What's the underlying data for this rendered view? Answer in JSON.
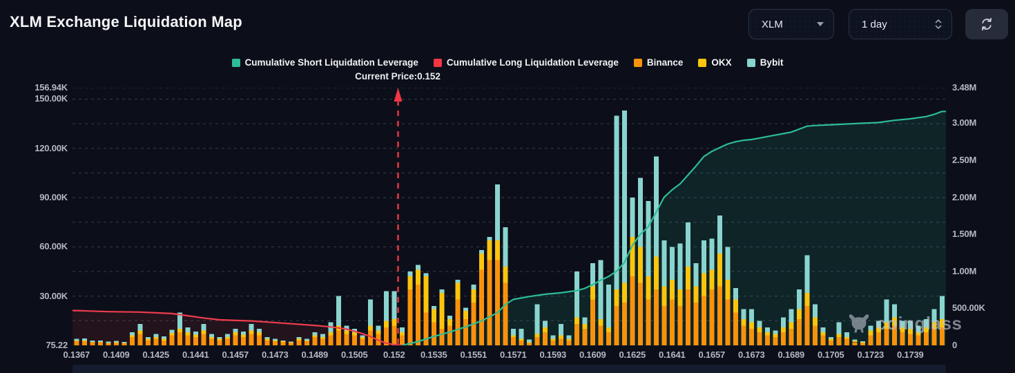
{
  "header": {
    "title": "XLM Exchange Liquidation Map"
  },
  "controls": {
    "symbol": "XLM",
    "interval": "1 day",
    "refresh_icon": "refresh-circular-arrows"
  },
  "legend": [
    {
      "label": "Cumulative Short Liquidation Leverage",
      "color": "#2dbd96"
    },
    {
      "label": "Cumulative Long Liquidation Leverage",
      "color": "#f23645"
    },
    {
      "label": "Binance",
      "color": "#f9920b"
    },
    {
      "label": "OKX",
      "color": "#fbc50d"
    },
    {
      "label": "Bybit",
      "color": "#8ad4cf"
    }
  ],
  "annotation": {
    "current_price_label": "Current Price:0.152"
  },
  "watermark": {
    "text": "coinglass"
  },
  "colors": {
    "background": "#0c0f19",
    "grid": "#3c4352",
    "axis_text": "#b3b8c2",
    "short_line": "#2dbd96",
    "long_line": "#ef3d4e",
    "binance": "#f9920b",
    "okx": "#fbc50d",
    "bybit": "#8ad4cf",
    "short_fill": "rgba(45,189,150,0.12)",
    "long_fill": "rgba(242,54,69,0.10)",
    "price_marker": "#f23645"
  },
  "chart_data": {
    "type": "bar",
    "subtype": "stacked-bars-with-cumulative-lines",
    "title": "XLM Exchange Liquidation Map",
    "xlabel": "price",
    "grid": "dashed-horizontal",
    "legend_position": "top-center",
    "current_price": {
      "value": 0.152,
      "bar_index": 41
    },
    "x_labels": [
      "0.1367",
      "0.1409",
      "0.1425",
      "0.1441",
      "0.1457",
      "0.1473",
      "0.1489",
      "0.1505",
      "0.152",
      "0.1535",
      "0.1551",
      "0.1571",
      "0.1593",
      "0.1609",
      "0.1625",
      "0.1641",
      "0.1657",
      "0.1673",
      "0.1689",
      "0.1705",
      "0.1723",
      "0.1739"
    ],
    "label_every": 5,
    "left_axis": {
      "unit": "K",
      "max": 156.94,
      "labels": [
        [
          "156.94K",
          156.94
        ],
        [
          "150.00K",
          150
        ],
        [
          "120.00K",
          120
        ],
        [
          "90.00K",
          90
        ],
        [
          "60.00K",
          60
        ],
        [
          "30.00K",
          30
        ],
        [
          "75.22",
          0
        ]
      ]
    },
    "right_axis": {
      "unit": "M",
      "max": 3.48,
      "labels": [
        [
          "3.48M",
          3.48
        ],
        [
          "3.00M",
          3.0
        ],
        [
          "2.50M",
          2.5
        ],
        [
          "2.00M",
          2.0
        ],
        [
          "1.50M",
          1.5
        ],
        [
          "1.00M",
          1.0
        ],
        [
          "500.00K",
          0.5
        ],
        [
          "0",
          0
        ]
      ]
    },
    "bar_series_order": [
      "Binance",
      "OKX",
      "Bybit"
    ],
    "bars_unit": "K",
    "bars": [
      [
        2.5,
        0.5,
        1
      ],
      [
        2.5,
        0.5,
        1.2
      ],
      [
        1.8,
        0.4,
        0.8
      ],
      [
        1.8,
        0.4,
        0.8
      ],
      [
        1.2,
        0.3,
        0.9
      ],
      [
        1.5,
        0.4,
        0.9
      ],
      [
        1.2,
        0.3,
        0.6
      ],
      [
        5,
        1,
        2
      ],
      [
        7,
        2,
        4
      ],
      [
        3,
        1,
        1
      ],
      [
        4,
        1,
        2
      ],
      [
        3,
        1,
        1.5
      ],
      [
        6,
        1.5,
        2
      ],
      [
        8,
        2,
        10
      ],
      [
        6,
        2,
        3
      ],
      [
        5,
        1.5,
        2
      ],
      [
        7,
        2,
        4
      ],
      [
        4,
        1,
        2
      ],
      [
        3,
        1,
        1
      ],
      [
        4,
        1,
        2
      ],
      [
        6,
        2,
        2
      ],
      [
        5,
        1.5,
        2
      ],
      [
        7,
        2,
        4
      ],
      [
        6,
        2,
        2
      ],
      [
        3,
        1,
        1
      ],
      [
        2.5,
        0.5,
        1
      ],
      [
        2,
        0.5,
        0.5
      ],
      [
        1.5,
        0.3,
        0.5
      ],
      [
        3,
        1,
        1
      ],
      [
        2.5,
        0.5,
        1
      ],
      [
        5,
        1,
        2
      ],
      [
        4,
        1,
        2
      ],
      [
        6,
        2,
        6
      ],
      [
        9,
        3,
        18
      ],
      [
        7,
        2,
        3
      ],
      [
        6,
        2,
        2
      ],
      [
        4,
        1,
        1
      ],
      [
        9,
        3,
        16
      ],
      [
        7,
        2,
        3
      ],
      [
        11,
        4,
        18
      ],
      [
        12,
        4,
        17
      ],
      [
        6,
        2,
        3
      ],
      [
        34,
        8,
        3
      ],
      [
        37,
        9,
        3
      ],
      [
        20,
        22,
        2
      ],
      [
        14,
        8,
        2
      ],
      [
        10,
        22,
        2
      ],
      [
        12,
        4,
        2
      ],
      [
        28,
        10,
        2
      ],
      [
        16,
        5,
        2
      ],
      [
        26,
        8,
        3
      ],
      [
        46,
        10,
        2
      ],
      [
        52,
        12,
        2
      ],
      [
        52,
        12,
        34
      ],
      [
        38,
        10,
        24
      ],
      [
        5,
        1,
        4
      ],
      [
        3,
        1,
        6
      ],
      [
        1.5,
        0.5,
        1.5
      ],
      [
        5,
        2,
        18
      ],
      [
        8,
        3,
        4
      ],
      [
        3,
        1,
        2
      ],
      [
        4,
        2,
        7
      ],
      [
        3,
        1,
        2
      ],
      [
        13,
        4,
        28
      ],
      [
        10,
        3,
        4
      ],
      [
        28,
        8,
        14
      ],
      [
        12,
        4,
        36
      ],
      [
        8,
        3,
        26
      ],
      [
        24,
        10,
        106
      ],
      [
        26,
        12,
        105
      ],
      [
        42,
        24,
        24
      ],
      [
        38,
        22,
        42
      ],
      [
        28,
        14,
        46
      ],
      [
        34,
        20,
        61
      ],
      [
        24,
        12,
        28
      ],
      [
        28,
        12,
        20
      ],
      [
        24,
        10,
        28
      ],
      [
        34,
        14,
        27
      ],
      [
        26,
        10,
        14
      ],
      [
        30,
        14,
        20
      ],
      [
        34,
        12,
        19
      ],
      [
        36,
        20,
        23
      ],
      [
        28,
        12,
        20
      ],
      [
        20,
        8,
        7
      ],
      [
        12,
        4,
        6
      ],
      [
        10,
        4,
        8
      ],
      [
        8,
        3,
        4
      ],
      [
        6,
        2,
        3
      ],
      [
        5,
        2,
        2
      ],
      [
        8,
        3,
        6
      ],
      [
        10,
        4,
        8
      ],
      [
        16,
        6,
        12
      ],
      [
        24,
        8,
        23
      ],
      [
        12,
        5,
        8
      ],
      [
        6,
        2,
        3
      ],
      [
        3,
        1,
        1
      ],
      [
        5,
        2,
        7
      ],
      [
        4,
        1,
        3
      ],
      [
        2,
        0.7,
        0.8
      ],
      [
        1.5,
        0.5,
        0.5
      ],
      [
        6,
        3,
        3
      ],
      [
        8,
        3,
        4
      ],
      [
        10,
        4,
        14
      ],
      [
        12,
        5,
        8
      ],
      [
        8,
        3,
        4
      ],
      [
        7,
        3,
        5
      ],
      [
        6,
        2,
        4
      ],
      [
        8,
        3,
        5
      ],
      [
        10,
        4,
        8
      ],
      [
        11,
        5,
        14
      ]
    ],
    "long_line_unit": "M",
    "long_line": [
      [
        0,
        0.47
      ],
      [
        4,
        0.455
      ],
      [
        8,
        0.45
      ],
      [
        12,
        0.43
      ],
      [
        14,
        0.4
      ],
      [
        16,
        0.37
      ],
      [
        18,
        0.345
      ],
      [
        22,
        0.33
      ],
      [
        26,
        0.3
      ],
      [
        30,
        0.27
      ],
      [
        32,
        0.25
      ],
      [
        34,
        0.22
      ],
      [
        35,
        0.19
      ],
      [
        36,
        0.16
      ],
      [
        37,
        0.12
      ],
      [
        38,
        0.07
      ],
      [
        39,
        0.03
      ],
      [
        40,
        0.01
      ],
      [
        41,
        0
      ]
    ],
    "short_line_unit": "M",
    "short_line": [
      [
        41,
        0
      ],
      [
        43,
        0.05
      ],
      [
        45,
        0.12
      ],
      [
        47,
        0.18
      ],
      [
        49,
        0.25
      ],
      [
        51,
        0.33
      ],
      [
        53,
        0.44
      ],
      [
        54,
        0.55
      ],
      [
        55,
        0.62
      ],
      [
        57,
        0.66
      ],
      [
        59,
        0.69
      ],
      [
        61,
        0.71
      ],
      [
        63,
        0.74
      ],
      [
        64,
        0.77
      ],
      [
        65,
        0.82
      ],
      [
        66,
        0.88
      ],
      [
        67,
        0.93
      ],
      [
        68,
        1.0
      ],
      [
        69,
        1.12
      ],
      [
        70,
        1.35
      ],
      [
        71,
        1.5
      ],
      [
        72,
        1.6
      ],
      [
        73,
        1.8
      ],
      [
        74,
        2.0
      ],
      [
        75,
        2.1
      ],
      [
        76,
        2.18
      ],
      [
        77,
        2.3
      ],
      [
        78,
        2.42
      ],
      [
        79,
        2.55
      ],
      [
        80,
        2.62
      ],
      [
        81,
        2.67
      ],
      [
        82,
        2.72
      ],
      [
        83,
        2.75
      ],
      [
        84,
        2.77
      ],
      [
        85,
        2.78
      ],
      [
        86,
        2.8
      ],
      [
        87,
        2.82
      ],
      [
        88,
        2.84
      ],
      [
        89,
        2.86
      ],
      [
        90,
        2.88
      ],
      [
        91,
        2.92
      ],
      [
        92,
        2.96
      ],
      [
        93,
        2.97
      ],
      [
        95,
        2.98
      ],
      [
        97,
        2.99
      ],
      [
        99,
        3.0
      ],
      [
        101,
        3.01
      ],
      [
        103,
        3.04
      ],
      [
        105,
        3.06
      ],
      [
        107,
        3.09
      ],
      [
        108,
        3.12
      ],
      [
        109,
        3.16
      ]
    ]
  }
}
